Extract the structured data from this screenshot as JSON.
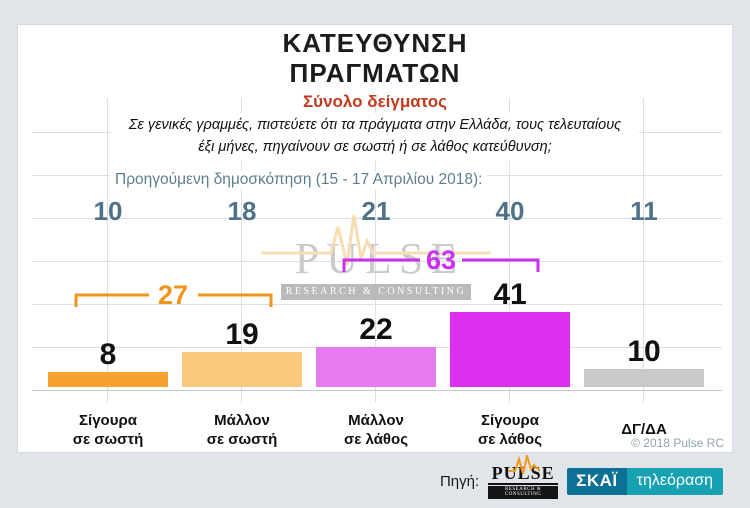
{
  "page": {
    "background": "#e1e5ea"
  },
  "header": {
    "title_line1": "ΚΑΤΕΥΘΥΝΣΗ",
    "title_line2": "ΠΡΑΓΜΑΤΩΝ",
    "subtitle": "Σύνολο δείγματος"
  },
  "question": {
    "line1": "Σε γενικές γραμμές, πιστεύετε ότι τα πράγματα στην Ελλάδα, τους τελευταίους",
    "line2": "έξι μήνες, πηγαίνουν σε σωστή ή σε λάθος κατεύθυνση;"
  },
  "chart_data": {
    "type": "bar",
    "title": "ΚΑΤΕΥΘΥΝΣΗ ΠΡΑΓΜΑΤΩΝ",
    "subtitle": "Σύνολο δείγματος",
    "categories": [
      "Σίγουρα σε σωστή",
      "Μάλλον σε σωστή",
      "Μάλλον σε λάθος",
      "Σίγουρα σε λάθος",
      "ΔΓ/ΔΑ"
    ],
    "category_lines": [
      [
        "Σίγουρα",
        "σε σωστή"
      ],
      [
        "Μάλλον",
        "σε σωστή"
      ],
      [
        "Μάλλον",
        "σε λάθος"
      ],
      [
        "Σίγουρα",
        "σε λάθος"
      ],
      [
        "ΔΓ/ΔΑ"
      ]
    ],
    "values": [
      8,
      19,
      22,
      41,
      10
    ],
    "previous_label": "Προηγούμενη δημοσκόπηση (15 - 17 Απριλίου 2018):",
    "previous_values": [
      10,
      18,
      21,
      40,
      11
    ],
    "bar_colors": [
      "#f5a232",
      "#fbc97c",
      "#e87bf0",
      "#dc30ee",
      "#c9c9c9"
    ],
    "group_annotations": [
      {
        "label": "27",
        "value": 27,
        "sum_of": [
          "Σίγουρα σε σωστή",
          "Μάλλον σε σωστή"
        ],
        "color": "#f0941e"
      },
      {
        "label": "63",
        "value": 63,
        "sum_of": [
          "Μάλλον σε λάθος",
          "Σίγουρα σε λάθος"
        ],
        "color": "#cb2ff2"
      }
    ],
    "ylim": [
      0,
      50
    ],
    "grid": true,
    "legend": false
  },
  "watermark": {
    "name": "PULSE",
    "tagline": "RESEARCH & CONSULTING"
  },
  "copyright": "© 2018 Pulse RC",
  "footer": {
    "source_label": "Πηγή:",
    "pulse_logo": {
      "name": "PULSE",
      "tagline": "RESEARCH & CONSULTING"
    },
    "skai_logo": {
      "channel": "ΣΚΑΪ",
      "suffix": "τηλεόραση",
      "left_color": "#0d7095",
      "right_color": "#17a2b4"
    }
  },
  "colors": {
    "subtitle": "#c23b1e",
    "previous_text": "#5e7e90",
    "previous_values": "#4f7288",
    "copyright": "#8fa3b0",
    "grid": "#dcdee0"
  }
}
